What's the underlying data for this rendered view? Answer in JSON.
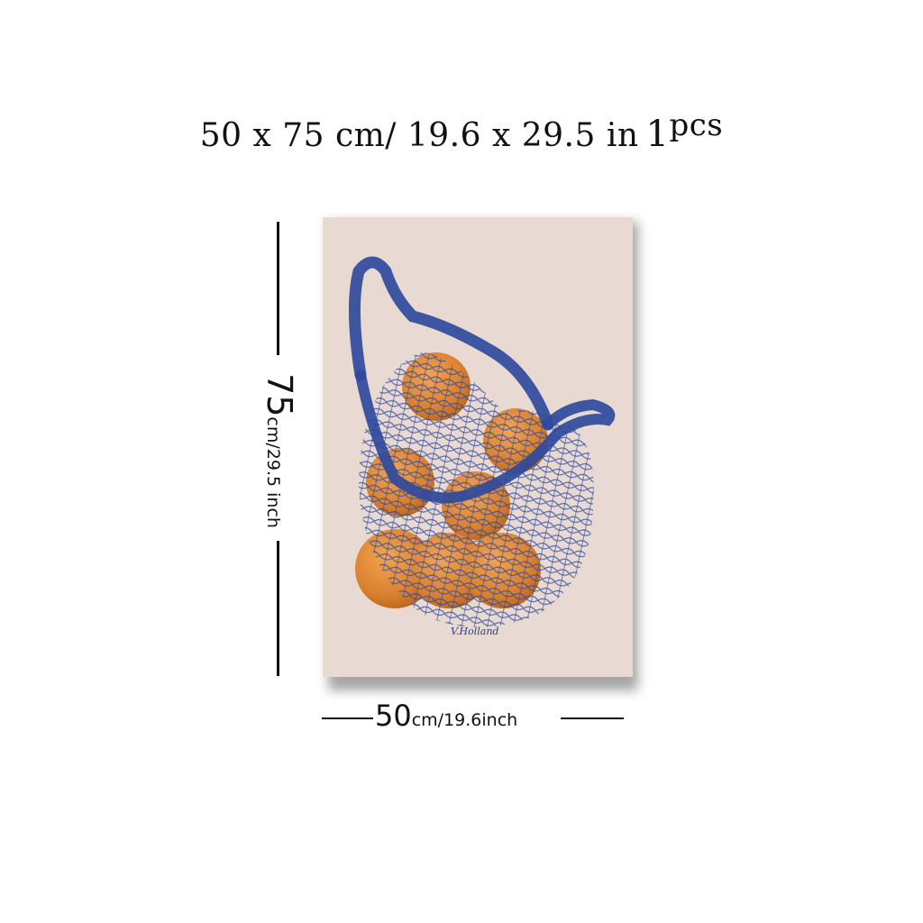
{
  "heading": {
    "size_text": "50 x 75 cm/ 19.6 x 29.5 in",
    "pcs_number": "1",
    "pcs_unit": "pcs"
  },
  "poster": {
    "signature": "V.Holland",
    "colors": {
      "background": "#e8d9d2",
      "net": "#2f4a9c",
      "orange": "#d9802f"
    }
  },
  "height_dim": {
    "value": "75",
    "unit": "cm/29.5 inch"
  },
  "width_dim": {
    "value": "50",
    "unit": "cm/19.6inch"
  }
}
